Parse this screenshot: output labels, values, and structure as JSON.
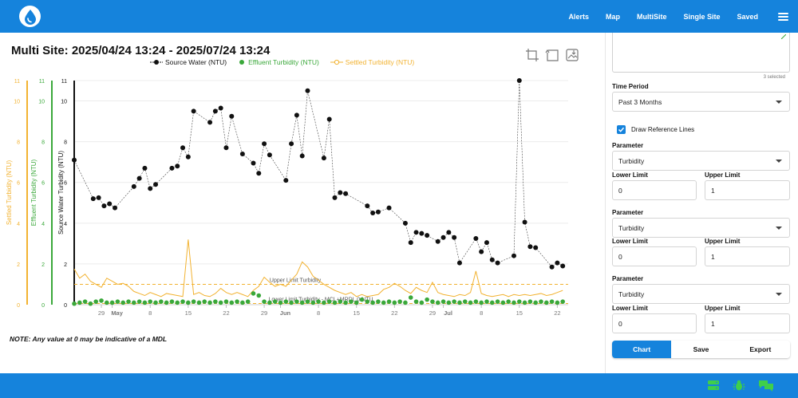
{
  "header": {
    "nav": [
      {
        "label": "Alerts"
      },
      {
        "label": "Map"
      },
      {
        "label": "MultiSite"
      },
      {
        "label": "Single Site"
      },
      {
        "label": "Saved"
      }
    ],
    "accent": "#1583dc"
  },
  "chart": {
    "title": "Multi Site: 2025/04/24 13:24 - 2025/07/24 13:24",
    "legend": [
      {
        "label": "Source Water (NTU)",
        "color": "#111111"
      },
      {
        "label": "Effluent Turbidity (NTU)",
        "color": "#3aa83a"
      },
      {
        "label": "Settled Turbidity (NTU)",
        "color": "#f2b230"
      }
    ],
    "tools": [
      "zoom-icon",
      "reset-zoom-icon",
      "download-image-icon"
    ]
  },
  "chart_data": {
    "type": "line",
    "axes": [
      {
        "label": "Settled Turbidity (NTU)",
        "ticks": [
          "0",
          "2",
          "4",
          "6",
          "8",
          "10",
          "11"
        ],
        "color": "#f2b230"
      },
      {
        "label": "Effluent Turbidity (NTU)",
        "ticks": [
          "0",
          "2",
          "4",
          "6",
          "8",
          "10",
          "11"
        ],
        "color": "#3aa83a"
      },
      {
        "label": "Source Water Turbidity (NTU)",
        "ticks": [
          "0",
          "2",
          "4",
          "6",
          "8",
          "10",
          "11"
        ],
        "color": "#111111"
      }
    ],
    "ylim": [
      0,
      11
    ],
    "x_ticks": [
      {
        "day": 5,
        "label": "29"
      },
      {
        "day": 7,
        "label": "May"
      },
      {
        "day": 14,
        "label": "8"
      },
      {
        "day": 21,
        "label": "15"
      },
      {
        "day": 28,
        "label": "22"
      },
      {
        "day": 35,
        "label": "29"
      },
      {
        "day": 38,
        "label": "Jun"
      },
      {
        "day": 45,
        "label": "8"
      },
      {
        "day": 52,
        "label": "15"
      },
      {
        "day": 59,
        "label": "22"
      },
      {
        "day": 66,
        "label": "29"
      },
      {
        "day": 68,
        "label": "Jul"
      },
      {
        "day": 75,
        "label": "8"
      },
      {
        "day": 82,
        "label": "15"
      },
      {
        "day": 89,
        "label": "22"
      }
    ],
    "x_range": [
      0,
      91
    ],
    "reference_lines": [
      {
        "label": "Upper Limit Turbidity",
        "value": 1,
        "color": "#f2b230"
      },
      {
        "label": "Lower Limit Turbidity - MCL+MRDL 0 NTU",
        "value": 0,
        "color": "#f2b230"
      }
    ],
    "series": [
      {
        "name": "Source Water (NTU)",
        "color": "#111111",
        "points": [
          [
            0,
            7.1
          ],
          [
            3.5,
            5.2
          ],
          [
            4.5,
            5.25
          ],
          [
            5.5,
            4.85
          ],
          [
            6.5,
            4.95
          ],
          [
            7.5,
            4.75
          ],
          [
            11,
            5.8
          ],
          [
            12,
            6.2
          ],
          [
            13,
            6.7
          ],
          [
            14,
            5.7
          ],
          [
            15,
            5.9
          ],
          [
            18,
            6.7
          ],
          [
            19,
            6.8
          ],
          [
            20,
            7.7
          ],
          [
            21,
            7.25
          ],
          [
            22,
            9.5
          ],
          [
            25,
            8.95
          ],
          [
            26,
            9.5
          ],
          [
            27,
            9.65
          ],
          [
            28,
            7.7
          ],
          [
            29,
            9.25
          ],
          [
            31,
            7.4
          ],
          [
            33,
            6.95
          ],
          [
            34,
            6.45
          ],
          [
            35,
            7.9
          ],
          [
            36,
            7.35
          ],
          [
            39,
            6.1
          ],
          [
            40,
            7.9
          ],
          [
            41,
            9.3
          ],
          [
            42,
            7.3
          ],
          [
            43,
            10.5
          ],
          [
            46,
            7.2
          ],
          [
            47,
            9.1
          ],
          [
            48,
            5.25
          ],
          [
            49,
            5.5
          ],
          [
            50,
            5.45
          ],
          [
            54,
            4.85
          ],
          [
            55,
            4.5
          ],
          [
            56,
            4.55
          ],
          [
            58,
            4.75
          ],
          [
            61,
            4.0
          ],
          [
            62,
            3.05
          ],
          [
            63,
            3.55
          ],
          [
            64,
            3.5
          ],
          [
            65,
            3.4
          ],
          [
            67,
            3.1
          ],
          [
            68,
            3.3
          ],
          [
            69,
            3.55
          ],
          [
            70,
            3.3
          ],
          [
            71,
            2.05
          ],
          [
            74,
            3.25
          ],
          [
            75,
            2.6
          ],
          [
            76,
            3.05
          ],
          [
            77,
            2.2
          ],
          [
            78,
            2.05
          ],
          [
            81,
            2.4
          ],
          [
            82,
            11.0
          ],
          [
            83,
            4.05
          ],
          [
            84,
            2.85
          ],
          [
            85,
            2.8
          ],
          [
            88,
            1.85
          ],
          [
            89,
            2.05
          ],
          [
            90,
            1.9
          ]
        ]
      },
      {
        "name": "Effluent Turbidity (NTU)",
        "color": "#3aa83a",
        "points": [
          [
            0,
            0.05
          ],
          [
            1,
            0.1
          ],
          [
            2,
            0.15
          ],
          [
            3,
            0.05
          ],
          [
            4,
            0.15
          ],
          [
            5,
            0.2
          ],
          [
            6,
            0.1
          ],
          [
            7,
            0.1
          ],
          [
            8,
            0.15
          ],
          [
            9,
            0.1
          ],
          [
            10,
            0.15
          ],
          [
            11,
            0.1
          ],
          [
            12,
            0.15
          ],
          [
            13,
            0.1
          ],
          [
            14,
            0.15
          ],
          [
            15,
            0.1
          ],
          [
            16,
            0.15
          ],
          [
            17,
            0.1
          ],
          [
            18,
            0.15
          ],
          [
            19,
            0.1
          ],
          [
            20,
            0.15
          ],
          [
            21,
            0.1
          ],
          [
            22,
            0.15
          ],
          [
            23,
            0.1
          ],
          [
            24,
            0.15
          ],
          [
            25,
            0.1
          ],
          [
            26,
            0.15
          ],
          [
            27,
            0.1
          ],
          [
            28,
            0.15
          ],
          [
            29,
            0.1
          ],
          [
            30,
            0.15
          ],
          [
            31,
            0.1
          ],
          [
            32,
            0.15
          ],
          [
            33,
            0.55
          ],
          [
            34,
            0.45
          ],
          [
            35,
            0.15
          ],
          [
            36,
            0.1
          ],
          [
            37,
            0.15
          ],
          [
            38,
            0.1
          ],
          [
            39,
            0.15
          ],
          [
            40,
            0.1
          ],
          [
            41,
            0.15
          ],
          [
            42,
            0.1
          ],
          [
            43,
            0.15
          ],
          [
            44,
            0.1
          ],
          [
            45,
            0.15
          ],
          [
            46,
            0.1
          ],
          [
            47,
            0.15
          ],
          [
            48,
            0.1
          ],
          [
            49,
            0.15
          ],
          [
            50,
            0.1
          ],
          [
            51,
            0.15
          ],
          [
            52,
            0.1
          ],
          [
            53,
            0.25
          ],
          [
            54,
            0.15
          ],
          [
            55,
            0.1
          ],
          [
            56,
            0.15
          ],
          [
            57,
            0.1
          ],
          [
            58,
            0.15
          ],
          [
            59,
            0.1
          ],
          [
            60,
            0.15
          ],
          [
            61,
            0.1
          ],
          [
            62,
            0.35
          ],
          [
            63,
            0.15
          ],
          [
            64,
            0.1
          ],
          [
            65,
            0.25
          ],
          [
            66,
            0.15
          ],
          [
            67,
            0.1
          ],
          [
            68,
            0.15
          ],
          [
            69,
            0.1
          ],
          [
            70,
            0.15
          ],
          [
            71,
            0.1
          ],
          [
            72,
            0.15
          ],
          [
            73,
            0.1
          ],
          [
            74,
            0.15
          ],
          [
            75,
            0.1
          ],
          [
            76,
            0.15
          ],
          [
            77,
            0.1
          ],
          [
            78,
            0.15
          ],
          [
            79,
            0.1
          ],
          [
            80,
            0.15
          ],
          [
            81,
            0.1
          ],
          [
            82,
            0.15
          ],
          [
            83,
            0.1
          ],
          [
            84,
            0.15
          ],
          [
            85,
            0.1
          ],
          [
            86,
            0.15
          ],
          [
            87,
            0.1
          ],
          [
            88,
            0.15
          ],
          [
            89,
            0.1
          ],
          [
            90,
            0.15
          ]
        ]
      },
      {
        "name": "Settled Turbidity (NTU)",
        "color": "#f2b230",
        "points": [
          [
            0,
            1.75
          ],
          [
            1,
            1.3
          ],
          [
            2,
            1.5
          ],
          [
            3,
            1.15
          ],
          [
            4,
            1.0
          ],
          [
            5,
            0.85
          ],
          [
            6,
            1.3
          ],
          [
            7,
            1.15
          ],
          [
            8,
            1.0
          ],
          [
            9,
            1.05
          ],
          [
            10,
            0.9
          ],
          [
            11,
            0.65
          ],
          [
            12,
            0.55
          ],
          [
            13,
            0.45
          ],
          [
            14,
            0.6
          ],
          [
            15,
            0.5
          ],
          [
            16,
            0.4
          ],
          [
            17,
            0.55
          ],
          [
            18,
            0.5
          ],
          [
            19,
            0.45
          ],
          [
            20,
            0.4
          ],
          [
            21,
            3.2
          ],
          [
            22,
            0.5
          ],
          [
            23,
            0.6
          ],
          [
            24,
            0.45
          ],
          [
            25,
            0.4
          ],
          [
            26,
            0.55
          ],
          [
            27,
            0.8
          ],
          [
            28,
            0.6
          ],
          [
            29,
            0.5
          ],
          [
            30,
            0.6
          ],
          [
            31,
            0.5
          ],
          [
            32,
            0.4
          ],
          [
            33,
            0.7
          ],
          [
            34,
            0.9
          ],
          [
            35,
            1.35
          ],
          [
            36,
            1.1
          ],
          [
            37,
            0.9
          ],
          [
            38,
            1.0
          ],
          [
            39,
            0.9
          ],
          [
            40,
            1.2
          ],
          [
            41,
            1.5
          ],
          [
            42,
            2.1
          ],
          [
            43,
            1.85
          ],
          [
            44,
            1.4
          ],
          [
            45,
            1.2
          ],
          [
            46,
            1.0
          ],
          [
            47,
            0.85
          ],
          [
            48,
            0.7
          ],
          [
            49,
            0.6
          ],
          [
            50,
            0.5
          ],
          [
            51,
            0.6
          ],
          [
            52,
            0.4
          ],
          [
            53,
            0.5
          ],
          [
            54,
            0.4
          ],
          [
            55,
            0.45
          ],
          [
            56,
            0.5
          ],
          [
            57,
            0.75
          ],
          [
            58,
            0.85
          ],
          [
            59,
            1.05
          ],
          [
            60,
            0.9
          ],
          [
            61,
            0.7
          ],
          [
            62,
            0.55
          ],
          [
            63,
            0.85
          ],
          [
            64,
            0.7
          ],
          [
            65,
            0.6
          ],
          [
            66,
            1.1
          ],
          [
            67,
            0.6
          ],
          [
            68,
            0.5
          ],
          [
            69,
            0.45
          ],
          [
            70,
            0.4
          ],
          [
            71,
            0.5
          ],
          [
            72,
            0.45
          ],
          [
            73,
            0.6
          ],
          [
            74,
            1.65
          ],
          [
            75,
            0.55
          ],
          [
            76,
            0.45
          ],
          [
            77,
            0.4
          ],
          [
            78,
            0.45
          ],
          [
            79,
            0.5
          ],
          [
            80,
            0.4
          ],
          [
            81,
            0.5
          ],
          [
            82,
            0.45
          ],
          [
            83,
            0.5
          ],
          [
            84,
            0.45
          ],
          [
            85,
            0.5
          ],
          [
            86,
            0.55
          ],
          [
            87,
            0.45
          ],
          [
            88,
            0.5
          ],
          [
            89,
            0.6
          ],
          [
            90,
            0.7
          ]
        ]
      }
    ]
  },
  "note": "NOTE: Any value at 0 may be indicative of a MDL",
  "panel": {
    "selected_count": "3 selected",
    "time_period_label": "Time Period",
    "time_period_value": "Past 3 Months",
    "draw_reference_label": "Draw Reference Lines",
    "draw_reference_checked": true,
    "parameters": [
      {
        "label": "Parameter",
        "value": "Turbidity",
        "lower_label": "Lower Limit",
        "lower_value": "0",
        "upper_label": "Upper Limit",
        "upper_value": "1"
      },
      {
        "label": "Parameter",
        "value": "Turbidity",
        "lower_label": "Lower Limit",
        "lower_value": "0",
        "upper_label": "Upper Limit",
        "upper_value": "1"
      },
      {
        "label": "Parameter",
        "value": "Turbidity",
        "lower_label": "Lower Limit",
        "lower_value": "0",
        "upper_label": "Upper Limit",
        "upper_value": "1"
      }
    ],
    "buttons": [
      {
        "label": "Chart",
        "active": true
      },
      {
        "label": "Save",
        "active": false
      },
      {
        "label": "Export",
        "active": false
      }
    ]
  },
  "footer": {
    "icons": [
      "server-icon",
      "bug-icon",
      "chat-icon"
    ]
  }
}
